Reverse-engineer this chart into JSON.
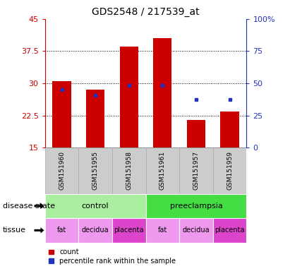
{
  "title": "GDS2548 / 217539_at",
  "samples": [
    "GSM151960",
    "GSM151955",
    "GSM151958",
    "GSM151961",
    "GSM151957",
    "GSM151959"
  ],
  "bar_bottoms": [
    15,
    15,
    15,
    15,
    15,
    15
  ],
  "bar_tops": [
    30.5,
    28.5,
    38.5,
    40.5,
    21.5,
    23.5
  ],
  "bar_color": "#cc0000",
  "percentile_values": [
    28.5,
    27.2,
    29.5,
    29.5,
    26.3,
    26.3
  ],
  "percentile_color": "#2233bb",
  "ylim": [
    15,
    45
  ],
  "yticks_left": [
    15,
    22.5,
    30,
    37.5,
    45
  ],
  "yticks_right": [
    0,
    25,
    50,
    75,
    100
  ],
  "y_right_labels": [
    "0",
    "25",
    "50",
    "75",
    "100%"
  ],
  "left_axis_color": "#cc0000",
  "right_axis_color": "#2233bb",
  "grid_yticks": [
    22.5,
    30,
    37.5
  ],
  "disease_state_groups": [
    {
      "label": "control",
      "start": 0,
      "end": 3,
      "color": "#aaeea0"
    },
    {
      "label": "preeclampsia",
      "start": 3,
      "end": 6,
      "color": "#44dd44"
    }
  ],
  "tissue_groups": [
    {
      "label": "fat",
      "start": 0,
      "end": 1,
      "color": "#ee99ee"
    },
    {
      "label": "decidua",
      "start": 1,
      "end": 2,
      "color": "#ee99ee"
    },
    {
      "label": "placenta",
      "start": 2,
      "end": 3,
      "color": "#dd44cc"
    },
    {
      "label": "fat",
      "start": 3,
      "end": 4,
      "color": "#ee99ee"
    },
    {
      "label": "decidua",
      "start": 4,
      "end": 5,
      "color": "#ee99ee"
    },
    {
      "label": "placenta",
      "start": 5,
      "end": 6,
      "color": "#dd44cc"
    }
  ],
  "legend_items": [
    {
      "label": "count",
      "color": "#cc0000"
    },
    {
      "label": "percentile rank within the sample",
      "color": "#2233bb"
    }
  ],
  "bar_width": 0.55,
  "disease_state_label": "disease state",
  "tissue_label": "tissue",
  "sample_box_color": "#cccccc",
  "sample_box_border": "#aaaaaa"
}
